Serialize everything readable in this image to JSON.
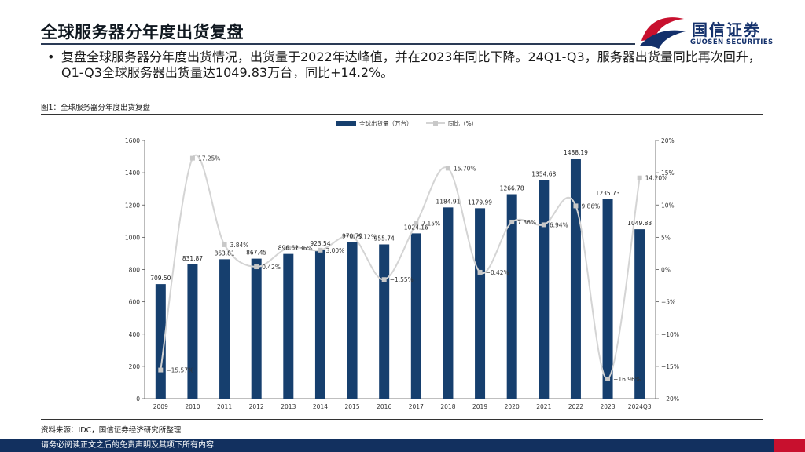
{
  "header": {
    "title": "全球服务器分年度出货复盘"
  },
  "logo": {
    "name_cn": "国信证券",
    "name_en": "GUOSEN SECURITIES"
  },
  "summary": {
    "bullet": "•",
    "text": "复盘全球服务器分年度出货情况，出货量于2022年达峰值，并在2023年同比下降。24Q1-Q3，服务器出货量同比再次回升，Q1-Q3全球服务器出货量达1049.83万台，同比+14.2%。"
  },
  "figure": {
    "caption": "图1：全球服务器分年度出货复盘",
    "source": "资料来源：IDC，国信证券经济研究所整理"
  },
  "footer": {
    "disclaimer": "请务必阅读正文之后的免责声明及其项下所有内容"
  },
  "colors": {
    "bar": "#163f6e",
    "line": "#d4d4d4",
    "marker": "#c8c8c8",
    "footer": "#12305f",
    "accent": "#c8102e"
  },
  "chart_data": {
    "type": "bar",
    "categories": [
      "2009",
      "2010",
      "2011",
      "2012",
      "2013",
      "2014",
      "2015",
      "2016",
      "2017",
      "2018",
      "2019",
      "2020",
      "2021",
      "2022",
      "2023",
      "2024Q3"
    ],
    "series": [
      {
        "name": "全球出货量（万台）",
        "type": "bar",
        "axis": "left",
        "values": [
          709.5,
          831.87,
          863.81,
          867.45,
          896.62,
          923.54,
          970.79,
          955.74,
          1024.16,
          1184.91,
          1179.99,
          1266.78,
          1354.68,
          1488.19,
          1235.73,
          1049.83
        ],
        "labels": [
          "709.50",
          "831.87",
          "863.81",
          "867.45",
          "896.62",
          "923.54",
          "970.79",
          "955.74",
          "1024.16",
          "1184.91",
          "1179.99",
          "1266.78",
          "1354.68",
          "1488.19",
          "1235.73",
          "1049.83"
        ]
      },
      {
        "name": "同比（%）",
        "type": "line",
        "axis": "right",
        "values": [
          -15.57,
          17.25,
          3.84,
          0.42,
          3.36,
          3.0,
          5.12,
          -1.55,
          7.15,
          15.7,
          -0.42,
          7.36,
          6.94,
          9.86,
          -16.96,
          14.2
        ],
        "labels": [
          "−15.57%",
          "17.25%",
          "3.84%",
          "0.42%",
          "3.36%",
          "3.00%",
          "5.12%",
          "−1.55%",
          "7.15%",
          "15.70%",
          "−0.42%",
          "7.36%",
          "6.94%",
          "9.86%",
          "−16.96%",
          "14.20%"
        ]
      }
    ],
    "y_left": {
      "ylim": [
        0,
        1600
      ],
      "ticks": [
        "0",
        "200",
        "400",
        "600",
        "800",
        "1000",
        "1200",
        "1400",
        "1600"
      ]
    },
    "y_right": {
      "ylim": [
        -20,
        20
      ],
      "ticks": [
        "−20%",
        "−15%",
        "−10%",
        "−5%",
        "0%",
        "5%",
        "10%",
        "15%",
        "20%"
      ]
    },
    "legend": {
      "placement": "top-center",
      "entries": [
        "全球出货量（万台）",
        "同比（%）"
      ]
    },
    "grid": false
  }
}
